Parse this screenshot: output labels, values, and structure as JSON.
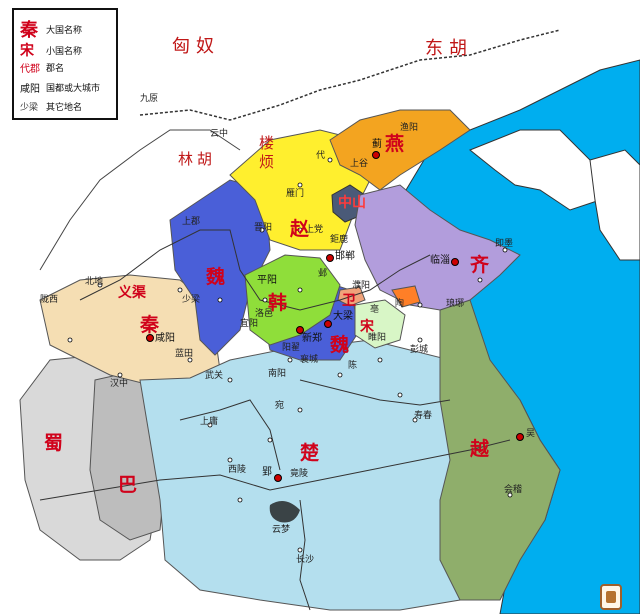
{
  "legend": {
    "items": [
      {
        "key": "秦",
        "desc": "大国名称",
        "style": "large"
      },
      {
        "key": "宋",
        "desc": "小国名称",
        "style": "small"
      },
      {
        "key": "代郡",
        "desc": "郡名",
        "style": "commandery"
      },
      {
        "key": "咸阳",
        "desc": "国都或大城市",
        "style": "capital"
      },
      {
        "key": "少梁",
        "desc": "其它地名",
        "style": "place"
      }
    ]
  },
  "peoples": {
    "xiongnu": "匈奴",
    "donghu": "东胡",
    "loufan": "楼烦",
    "linhu": "林胡"
  },
  "states": {
    "qin": "秦",
    "zhao": "赵",
    "wei": "魏",
    "han": "韩",
    "qi": "齐",
    "chu": "楚",
    "yan": "燕",
    "yue": "越",
    "zhongshan": "中山",
    "weiwei": "卫",
    "song": "宋",
    "shu": "蜀",
    "ba": "巴",
    "yiqu": "义渠"
  },
  "capitals": {
    "xianyang": "咸阳",
    "ji": "蓟",
    "handan": "邯郸",
    "linzi": "临淄",
    "daliang": "大梁",
    "ying": "郢",
    "xinzheng": "新郑",
    "pingyang": "平阳"
  },
  "places": {
    "dai": "代",
    "yanmen": "雁门",
    "jinyang": "晋阳",
    "shangdang": "上党",
    "yuyang": "渔阳",
    "shanggu": "上谷",
    "yunzhong": "云中",
    "jiuyuan": "九原",
    "longxi": "陇西",
    "beidi": "北地",
    "shangjun": "上郡",
    "hanzhong": "汉中",
    "nanyang": "南阳",
    "changsha": "长沙",
    "pengcheng": "彭城",
    "suiyang": "睢阳",
    "xiangcheng": "襄城",
    "chen": "陈",
    "shouchun": "寿春",
    "wuguan": "武关",
    "wan": "宛",
    "shangyong": "上庸",
    "xiling": "西陵",
    "jingling": "竟陵",
    "yunmeng": "云梦",
    "wu": "吴",
    "kuaiji": "会稽",
    "langya": "琅琊",
    "jimo": "即墨",
    "yangdi": "阳翟",
    "yiyang": "宜阳",
    "luoyi": "洛邑",
    "puyang": "濮阳",
    "taocheng": "陶",
    "jiling": "鉅鹿",
    "bodu": "亳",
    "shaoliang": "少梁",
    "lanshan": "蓝田",
    "ye": "邺"
  }
}
